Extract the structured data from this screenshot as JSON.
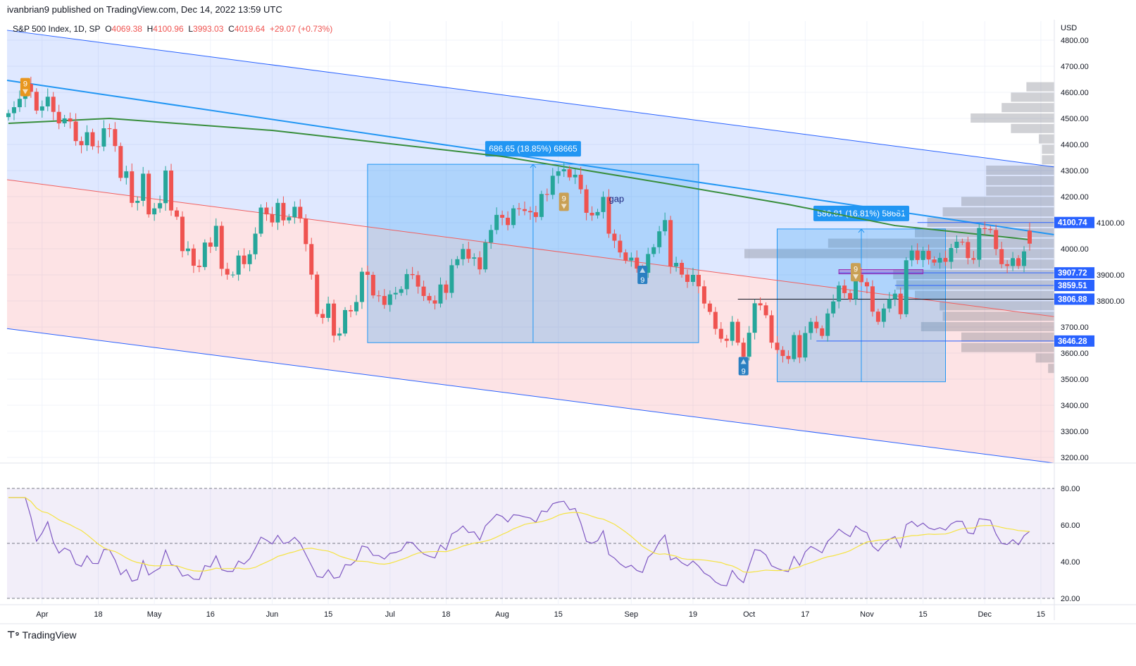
{
  "header": {
    "published": "ivanbrian9 published on TradingView.com, Dec 14, 2022 13:59 UTC"
  },
  "legend": {
    "symbol": "S&P 500 Index, 1D, SP",
    "o_label": "O",
    "o": "4069.38",
    "h_label": "H",
    "h": "4100.96",
    "l_label": "L",
    "l": "3993.03",
    "c_label": "C",
    "c": "4019.64",
    "change": "+29.07 (+0.73%)"
  },
  "footer": {
    "logo_text": "TradingView"
  },
  "colors": {
    "up": "#26a69a",
    "down": "#ef5350",
    "accent": "#2962ff",
    "ma": "#388e3c",
    "channel": "#2196f3",
    "regression": "#f06060",
    "rsi": "#7e57c2",
    "rsi_ma": "#f5e342"
  },
  "chart_data": {
    "type": "candlestick",
    "currency": "USD",
    "y_ticks": [
      4800,
      4700,
      4600,
      4500,
      4400,
      4300,
      4200,
      4100,
      4000,
      3900,
      3800,
      3700,
      3600,
      3500,
      3400,
      3300,
      3200
    ],
    "ylim": [
      3200,
      4800
    ],
    "last_candle": {
      "open": 4069.38,
      "high": 4100.96,
      "low": 3993.03,
      "close": 4019.64
    },
    "closes": [
      [
        "03-24",
        4520
      ],
      [
        "03-25",
        4543
      ],
      [
        "03-28",
        4575
      ],
      [
        "03-29",
        4632
      ],
      [
        "03-30",
        4602
      ],
      [
        "03-31",
        4530
      ],
      [
        "04-01",
        4546
      ],
      [
        "04-04",
        4583
      ],
      [
        "04-05",
        4525
      ],
      [
        "04-06",
        4481
      ],
      [
        "04-07",
        4500
      ],
      [
        "04-08",
        4488
      ],
      [
        "04-11",
        4413
      ],
      [
        "04-12",
        4397
      ],
      [
        "04-13",
        4447
      ],
      [
        "04-14",
        4393
      ],
      [
        "04-18",
        4392
      ],
      [
        "04-19",
        4462
      ],
      [
        "04-20",
        4459
      ],
      [
        "04-21",
        4394
      ],
      [
        "04-22",
        4272
      ],
      [
        "04-25",
        4297
      ],
      [
        "04-26",
        4176
      ],
      [
        "04-27",
        4184
      ],
      [
        "04-28",
        4288
      ],
      [
        "04-29",
        4132
      ],
      [
        "05-02",
        4155
      ],
      [
        "05-03",
        4175
      ],
      [
        "05-04",
        4300
      ],
      [
        "05-05",
        4147
      ],
      [
        "05-06",
        4123
      ],
      [
        "05-09",
        3991
      ],
      [
        "05-10",
        4001
      ],
      [
        "05-11",
        3935
      ],
      [
        "05-12",
        3930
      ],
      [
        "05-13",
        4024
      ],
      [
        "05-16",
        4008
      ],
      [
        "05-17",
        4088
      ],
      [
        "05-18",
        3923
      ],
      [
        "05-19",
        3901
      ],
      [
        "05-20",
        3901
      ],
      [
        "05-23",
        3974
      ],
      [
        "05-24",
        3941
      ],
      [
        "05-25",
        3979
      ],
      [
        "05-26",
        4058
      ],
      [
        "05-27",
        4158
      ],
      [
        "05-31",
        4132
      ],
      [
        "06-01",
        4101
      ],
      [
        "06-02",
        4176
      ],
      [
        "06-03",
        4109
      ],
      [
        "06-06",
        4121
      ],
      [
        "06-07",
        4161
      ],
      [
        "06-08",
        4116
      ],
      [
        "06-09",
        4018
      ],
      [
        "06-10",
        3901
      ],
      [
        "06-13",
        3750
      ],
      [
        "06-14",
        3735
      ],
      [
        "06-15",
        3790
      ],
      [
        "06-16",
        3667
      ],
      [
        "06-17",
        3675
      ],
      [
        "06-21",
        3765
      ],
      [
        "06-22",
        3760
      ],
      [
        "06-23",
        3796
      ],
      [
        "06-24",
        3912
      ],
      [
        "06-27",
        3900
      ],
      [
        "06-28",
        3821
      ],
      [
        "06-29",
        3819
      ],
      [
        "06-30",
        3785
      ],
      [
        "07-01",
        3825
      ],
      [
        "07-05",
        3831
      ],
      [
        "07-06",
        3845
      ],
      [
        "07-07",
        3903
      ],
      [
        "07-08",
        3899
      ],
      [
        "07-11",
        3855
      ],
      [
        "07-12",
        3819
      ],
      [
        "07-13",
        3802
      ],
      [
        "07-14",
        3790
      ],
      [
        "07-15",
        3863
      ],
      [
        "07-18",
        3831
      ],
      [
        "07-19",
        3937
      ],
      [
        "07-20",
        3960
      ],
      [
        "07-21",
        3999
      ],
      [
        "07-22",
        3962
      ],
      [
        "07-25",
        3967
      ],
      [
        "07-26",
        3921
      ],
      [
        "07-27",
        4024
      ],
      [
        "07-28",
        4072
      ],
      [
        "07-29",
        4130
      ],
      [
        "08-01",
        4119
      ],
      [
        "08-02",
        4091
      ],
      [
        "08-03",
        4155
      ],
      [
        "08-04",
        4152
      ],
      [
        "08-05",
        4145
      ],
      [
        "08-08",
        4140
      ],
      [
        "08-09",
        4122
      ],
      [
        "08-10",
        4210
      ],
      [
        "08-11",
        4207
      ],
      [
        "08-12",
        4280
      ],
      [
        "08-15",
        4297
      ],
      [
        "08-16",
        4305
      ],
      [
        "08-17",
        4274
      ],
      [
        "08-18",
        4284
      ],
      [
        "08-19",
        4228
      ],
      [
        "08-22",
        4138
      ],
      [
        "08-23",
        4128
      ],
      [
        "08-24",
        4141
      ],
      [
        "08-25",
        4199
      ],
      [
        "08-26",
        4058
      ],
      [
        "08-29",
        4031
      ],
      [
        "08-30",
        3986
      ],
      [
        "08-31",
        3955
      ],
      [
        "09-01",
        3966
      ],
      [
        "09-02",
        3924
      ],
      [
        "09-06",
        3908
      ],
      [
        "09-07",
        3980
      ],
      [
        "09-08",
        4006
      ],
      [
        "09-09",
        4067
      ],
      [
        "09-12",
        4110
      ],
      [
        "09-13",
        3932
      ],
      [
        "09-14",
        3946
      ],
      [
        "09-15",
        3901
      ],
      [
        "09-16",
        3873
      ],
      [
        "09-19",
        3900
      ],
      [
        "09-20",
        3856
      ],
      [
        "09-21",
        3790
      ],
      [
        "09-22",
        3758
      ],
      [
        "09-23",
        3693
      ],
      [
        "09-26",
        3655
      ],
      [
        "09-27",
        3647
      ],
      [
        "09-28",
        3720
      ],
      [
        "09-29",
        3640
      ],
      [
        "09-30",
        3586
      ],
      [
        "10-03",
        3678
      ],
      [
        "10-04",
        3791
      ],
      [
        "10-05",
        3783
      ],
      [
        "10-06",
        3745
      ],
      [
        "10-07",
        3640
      ],
      [
        "10-10",
        3612
      ],
      [
        "10-11",
        3589
      ],
      [
        "10-12",
        3577
      ],
      [
        "10-13",
        3669
      ],
      [
        "10-14",
        3583
      ],
      [
        "10-17",
        3677
      ],
      [
        "10-18",
        3720
      ],
      [
        "10-19",
        3695
      ],
      [
        "10-20",
        3666
      ],
      [
        "10-21",
        3752
      ],
      [
        "10-24",
        3798
      ],
      [
        "10-25",
        3859
      ],
      [
        "10-26",
        3830
      ],
      [
        "10-27",
        3807
      ],
      [
        "10-28",
        3901
      ],
      [
        "10-31",
        3872
      ],
      [
        "11-01",
        3856
      ],
      [
        "11-02",
        3759
      ],
      [
        "11-03",
        3720
      ],
      [
        "11-04",
        3771
      ],
      [
        "11-07",
        3807
      ],
      [
        "11-08",
        3828
      ],
      [
        "11-09",
        3749
      ],
      [
        "11-10",
        3956
      ],
      [
        "11-11",
        3993
      ],
      [
        "11-14",
        3957
      ],
      [
        "11-15",
        3992
      ],
      [
        "11-16",
        3959
      ],
      [
        "11-17",
        3947
      ],
      [
        "11-18",
        3965
      ],
      [
        "11-21",
        3950
      ],
      [
        "11-22",
        4003
      ],
      [
        "11-23",
        4027
      ],
      [
        "11-25",
        4026
      ],
      [
        "11-28",
        3964
      ],
      [
        "11-29",
        3958
      ],
      [
        "11-30",
        4080
      ],
      [
        "12-01",
        4076
      ],
      [
        "12-02",
        4072
      ],
      [
        "12-05",
        3999
      ],
      [
        "12-06",
        3941
      ],
      [
        "12-07",
        3934
      ],
      [
        "12-08",
        3964
      ],
      [
        "12-09",
        3934
      ],
      [
        "12-12",
        3990
      ],
      [
        "12-13",
        4019.64
      ]
    ],
    "x_ticks": [
      {
        "label": "Apr",
        "date": "04-01"
      },
      {
        "label": "18",
        "date": "04-18"
      },
      {
        "label": "May",
        "date": "05-02"
      },
      {
        "label": "16",
        "date": "05-16"
      },
      {
        "label": "Jun",
        "date": "06-01"
      },
      {
        "label": "15",
        "date": "06-15"
      },
      {
        "label": "Jul",
        "date": "07-01"
      },
      {
        "label": "18",
        "date": "07-18"
      },
      {
        "label": "Aug",
        "date": "08-01"
      },
      {
        "label": "15",
        "date": "08-15"
      },
      {
        "label": "Sep",
        "date": "09-01"
      },
      {
        "label": "19",
        "date": "09-19"
      },
      {
        "label": "Oct",
        "date": "10-03"
      },
      {
        "label": "17",
        "date": "10-17"
      },
      {
        "label": "Nov",
        "date": "11-01"
      },
      {
        "label": "15",
        "date": "11-15"
      },
      {
        "label": "Dec",
        "date": "12-01"
      },
      {
        "label": "15",
        "date": "12-15"
      }
    ],
    "moving_average": [
      [
        "03-24",
        4481
      ],
      [
        "04-20",
        4500
      ],
      [
        "06-01",
        4454
      ],
      [
        "08-01",
        4354
      ],
      [
        "09-12",
        4251
      ],
      [
        "10-12",
        4170
      ],
      [
        "11-08",
        4089
      ],
      [
        "12-13",
        4035
      ]
    ],
    "channel": {
      "upper": [
        4838,
        4314
      ],
      "middle": [
        4646,
        4054
      ],
      "lower": [
        3694,
        3178
      ],
      "regression": [
        4265,
        3740
      ]
    },
    "measurements": [
      {
        "label": "686.65 (18.85%) 68665",
        "from": "06-27",
        "to": "09-20",
        "low": 3640,
        "high": 4324
      },
      {
        "label": "586.81 (16.81%) 58681",
        "from": "10-10",
        "to": "11-21",
        "low": 3490,
        "high": 4076
      }
    ],
    "levels": [
      {
        "price": 4100.74,
        "label": "4100.74",
        "from": "11-14"
      },
      {
        "price": 3907.72,
        "label": "3907.72",
        "from": "10-25"
      },
      {
        "price": 3859.51,
        "label": "3859.51",
        "from": "11-08"
      },
      {
        "price": 3806.88,
        "label": "3806.88",
        "from": "09-29"
      },
      {
        "price": 3646.28,
        "label": "3646.28",
        "from": "10-19"
      }
    ],
    "annotations": [
      {
        "text": "gap",
        "date": "08-26",
        "price": 4180
      }
    ],
    "td_markers": [
      {
        "text": "9",
        "date": "03-29",
        "price": 4620,
        "dir": "down",
        "color": "#e8961e"
      },
      {
        "text": "9",
        "date": "08-16",
        "price": 4180,
        "dir": "down",
        "color": "#c9a055"
      },
      {
        "text": "9",
        "date": "09-06",
        "price": 3900,
        "dir": "up",
        "color": "#2a7fc1"
      },
      {
        "text": "9",
        "date": "09-30",
        "price": 3550,
        "dir": "up",
        "color": "#2a7fc1"
      },
      {
        "text": "9",
        "date": "10-28",
        "price": 3910,
        "dir": "down",
        "color": "#c9a055"
      }
    ],
    "volume_profile": [
      [
        4620,
        0.09
      ],
      [
        4580,
        0.14
      ],
      [
        4540,
        0.17
      ],
      [
        4500,
        0.27
      ],
      [
        4460,
        0.14
      ],
      [
        4420,
        0.05
      ],
      [
        4380,
        0.04
      ],
      [
        4340,
        0.04
      ],
      [
        4300,
        0.22
      ],
      [
        4260,
        0.22
      ],
      [
        4220,
        0.22
      ],
      [
        4180,
        0.3
      ],
      [
        4140,
        0.36
      ],
      [
        4100,
        0.41
      ],
      [
        4060,
        0.45
      ],
      [
        4020,
        0.73
      ],
      [
        3980,
        1.0
      ],
      [
        3940,
        0.4
      ],
      [
        3900,
        0.52
      ],
      [
        3860,
        0.51
      ],
      [
        3820,
        0.45
      ],
      [
        3780,
        0.37
      ],
      [
        3740,
        0.36
      ],
      [
        3700,
        0.43
      ],
      [
        3660,
        0.3
      ],
      [
        3620,
        0.3
      ],
      [
        3580,
        0.06
      ],
      [
        3540,
        0.02
      ]
    ],
    "rsi": {
      "period": 14,
      "y_ticks": [
        80,
        60,
        40,
        20
      ],
      "levels": [
        80,
        50,
        20
      ],
      "ylim": [
        17,
        85
      ]
    }
  }
}
